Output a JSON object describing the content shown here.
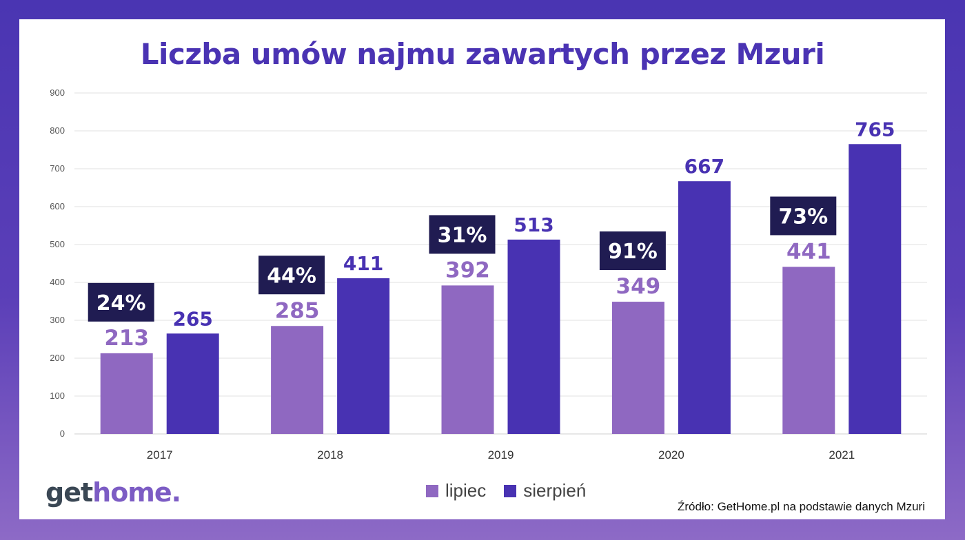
{
  "title": "Liczba umów najmu zawartych przez Mzuri",
  "source": "Źródło: GetHome.pl na podstawie danych Mzuri",
  "logo": {
    "part1": "get",
    "part2": "home."
  },
  "legend": [
    {
      "label": "lipiec",
      "color": "#8f68c1"
    },
    {
      "label": "sierpień",
      "color": "#4832b2"
    }
  ],
  "chart_data": {
    "type": "bar",
    "categories": [
      "2017",
      "2018",
      "2019",
      "2020",
      "2021"
    ],
    "series": [
      {
        "name": "lipiec",
        "values": [
          213,
          285,
          392,
          349,
          441
        ],
        "color": "#8f68c1"
      },
      {
        "name": "sierpień",
        "values": [
          265,
          411,
          513,
          667,
          765
        ],
        "color": "#4832b2"
      }
    ],
    "growth_labels": [
      "24%",
      "44%",
      "31%",
      "91%",
      "73%"
    ],
    "growth_box_color": "#201c52",
    "ylim": [
      0,
      900
    ],
    "yticks": [
      0,
      100,
      200,
      300,
      400,
      500,
      600,
      700,
      800,
      900
    ],
    "grid": true,
    "legend_position": "bottom-center"
  }
}
